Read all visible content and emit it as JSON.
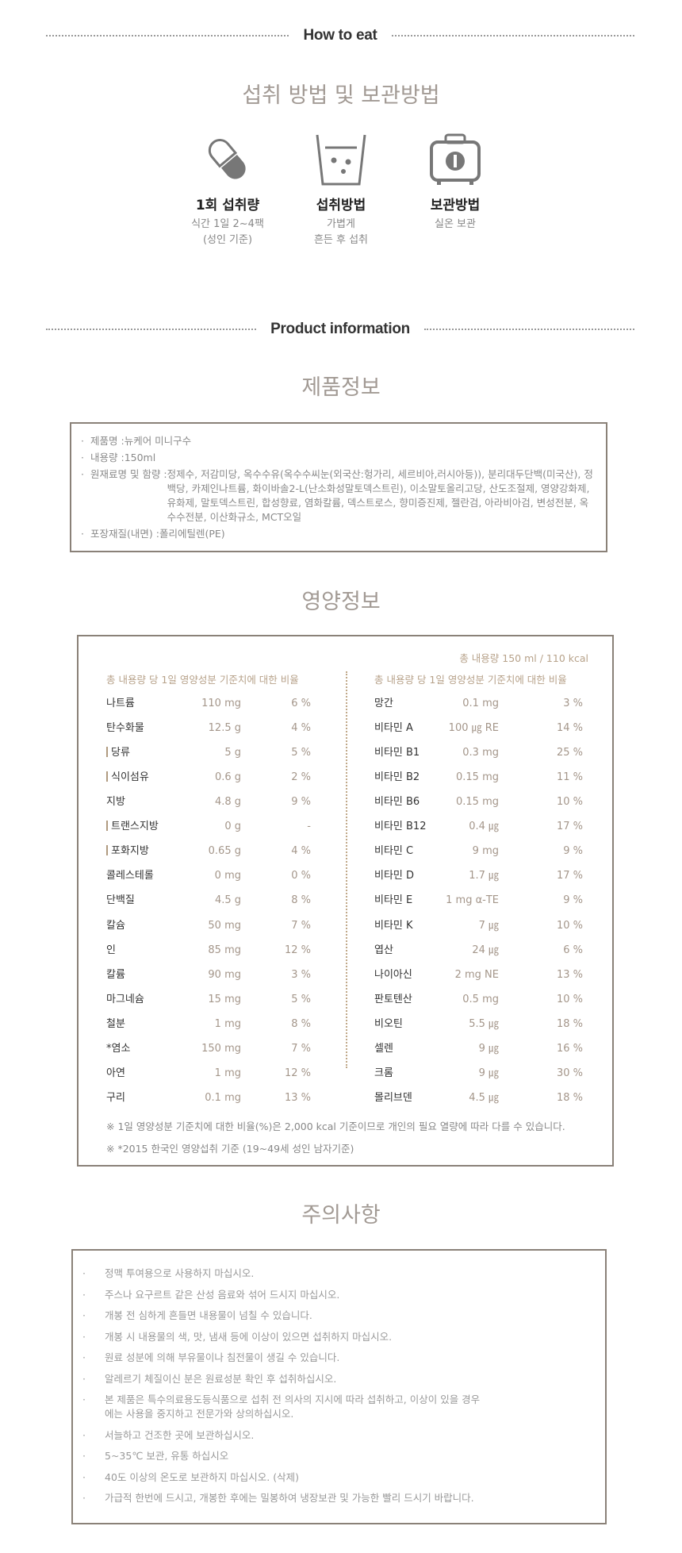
{
  "how_to_eat": {
    "section_label": "How to eat",
    "title": "섭취 방법 및 보관방법",
    "features": [
      {
        "icon": "capsule-icon",
        "label": "1회 섭취량",
        "lines": [
          "식간 1일 2~4팩",
          "(성인 기준)"
        ]
      },
      {
        "icon": "cup-icon",
        "label": "섭취방법",
        "lines": [
          "가볍게",
          "흔든 후 섭취"
        ]
      },
      {
        "icon": "storage-case-icon",
        "label": "보관방법",
        "lines": [
          "실온 보관"
        ]
      }
    ]
  },
  "product_info": {
    "section_label": "Product information",
    "title": "제품정보",
    "items": [
      {
        "key": "제품명 : ",
        "value": "뉴케어 미니구수"
      },
      {
        "key": "내용량 : ",
        "value": "150ml"
      },
      {
        "key": "원재료명 및 함량 : ",
        "value": "정제수, 저감미당, 옥수수유(옥수수씨눈(외국산:헝가리, 세르비아,러시아등)), 분리대두단백(미국산), 정백당, 카제인나트륨, 화이바솔2-L(난소화성말토덱스트린), 이소말토올리고당, 산도조절제, 영양강화제, 유화제, 말토덱스트린, 합성향료, 염화칼륨, 덱스트로스, 향미증진제, 젤란검, 아라비아검, 변성전분, 옥수수전분, 이산화규소, MCT오일"
      },
      {
        "key": "포장재질(내면) : ",
        "value": "폴리에틸렌(PE)"
      }
    ]
  },
  "nutrition": {
    "title": "영양정보",
    "total": "총 내용량 150 ml / 110 kcal",
    "column_header": "총 내용량 당 1일 영양성분 기준치에 대한 비율",
    "left": [
      {
        "name": "나트륨",
        "value": "110 mg",
        "pct": "6 %"
      },
      {
        "name": "탄수화물",
        "value": "12.5 g",
        "pct": "4 %"
      },
      {
        "name": "당류",
        "value": "5 g",
        "pct": "5 %",
        "sub": true
      },
      {
        "name": "식이섬유",
        "value": "0.6 g",
        "pct": "2 %",
        "sub": true
      },
      {
        "name": "지방",
        "value": "4.8 g",
        "pct": "9 %"
      },
      {
        "name": "트랜스지방",
        "value": "0 g",
        "pct": "-",
        "sub": true
      },
      {
        "name": "포화지방",
        "value": "0.65 g",
        "pct": "4 %",
        "sub": true
      },
      {
        "name": "콜레스테롤",
        "value": "0 mg",
        "pct": "0 %"
      },
      {
        "name": "단백질",
        "value": "4.5 g",
        "pct": "8 %"
      },
      {
        "name": "칼슘",
        "value": "50 mg",
        "pct": "7 %"
      },
      {
        "name": "인",
        "value": "85 mg",
        "pct": "12 %"
      },
      {
        "name": "칼륨",
        "value": "90 mg",
        "pct": "3 %"
      },
      {
        "name": "마그네슘",
        "value": "15 mg",
        "pct": "5 %"
      },
      {
        "name": "철분",
        "value": "1 mg",
        "pct": "8 %"
      },
      {
        "name": "*염소",
        "value": "150 mg",
        "pct": "7 %"
      },
      {
        "name": "아연",
        "value": "1 mg",
        "pct": "12 %"
      },
      {
        "name": "구리",
        "value": "0.1 mg",
        "pct": "13 %"
      }
    ],
    "right": [
      {
        "name": "망간",
        "value": "0.1 mg",
        "pct": "3 %"
      },
      {
        "name": "비타민 A",
        "value": "100 ㎍ RE",
        "pct": "14 %"
      },
      {
        "name": "비타민 B1",
        "value": "0.3 mg",
        "pct": "25 %"
      },
      {
        "name": "비타민 B2",
        "value": "0.15 mg",
        "pct": "11 %"
      },
      {
        "name": "비타민 B6",
        "value": "0.15 mg",
        "pct": "10 %"
      },
      {
        "name": "비타민 B12",
        "value": "0.4 ㎍",
        "pct": "17 %"
      },
      {
        "name": "비타민 C",
        "value": "9 mg",
        "pct": "9 %"
      },
      {
        "name": "비타민 D",
        "value": "1.7 ㎍",
        "pct": "17 %"
      },
      {
        "name": "비타민 E",
        "value": "1 mg α-TE",
        "pct": "9 %"
      },
      {
        "name": "비타민 K",
        "value": "7 ㎍",
        "pct": "10 %"
      },
      {
        "name": "엽산",
        "value": "24 ㎍",
        "pct": "6 %"
      },
      {
        "name": "나이아신",
        "value": "2 mg NE",
        "pct": "13 %"
      },
      {
        "name": "판토텐산",
        "value": "0.5 mg",
        "pct": "10 %"
      },
      {
        "name": "비오틴",
        "value": "5.5 ㎍",
        "pct": "18 %"
      },
      {
        "name": "셀렌",
        "value": "9 ㎍",
        "pct": "16 %"
      },
      {
        "name": "크롬",
        "value": "9 ㎍",
        "pct": "30 %"
      },
      {
        "name": "몰리브덴",
        "value": "4.5 ㎍",
        "pct": "18 %"
      }
    ],
    "notes": [
      "※ 1일 영양성분 기준치에 대한 비율(%)은 2,000 kcal 기준이므로 개인의 필요 열량에 따라 다를 수 있습니다.",
      "※ *2015 한국인 영양섭취 기준 (19~49세 성인 남자기준)"
    ]
  },
  "cautions": {
    "title": "주의사항",
    "items": [
      "정맥 투여용으로 사용하지 마십시오.",
      "주스나 요구르트 같은 산성 음료와 섞어 드시지 마십시오.",
      "개봉 전 심하게 흔들면 내용물이 넘칠 수 있습니다.",
      "개봉 시 내용물의 색, 맛, 냄새 등에 이상이 있으면 섭취하지 마십시오.",
      "원료 성분에 의해 부유물이나 침전물이 생길 수 있습니다.",
      "알레르기 체질이신 분은 원료성분 확인 후 섭취하십시오.",
      "본 제품은 특수의료용도등식품으로 섭취 전 의사의 지시에 따라 섭취하고, 이상이 있을 경우에는 사용을 중지하고 전문가와 상의하십시오.",
      "서늘하고 건조한 곳에 보관하십시오.",
      "5~35℃ 보관, 유통 하십시오",
      "40도 이상의 온도로 보관하지 마십시오. (삭제)",
      "가급적 한번에 드시고, 개봉한 후에는 밀봉하여 냉장보관 및 가능한 빨리 드시기 바랍니다."
    ]
  }
}
